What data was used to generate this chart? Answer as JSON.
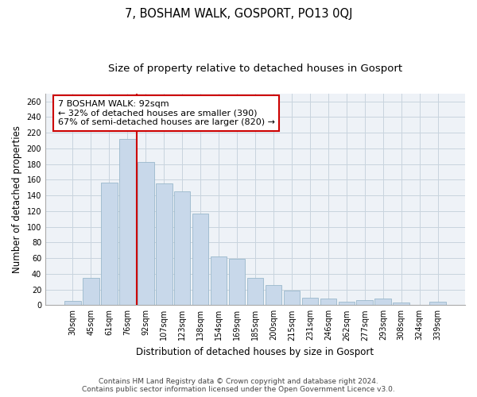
{
  "title": "7, BOSHAM WALK, GOSPORT, PO13 0QJ",
  "subtitle": "Size of property relative to detached houses in Gosport",
  "xlabel": "Distribution of detached houses by size in Gosport",
  "ylabel": "Number of detached properties",
  "bar_labels": [
    "30sqm",
    "45sqm",
    "61sqm",
    "76sqm",
    "92sqm",
    "107sqm",
    "123sqm",
    "138sqm",
    "154sqm",
    "169sqm",
    "185sqm",
    "200sqm",
    "215sqm",
    "231sqm",
    "246sqm",
    "262sqm",
    "277sqm",
    "293sqm",
    "308sqm",
    "324sqm",
    "339sqm"
  ],
  "bar_values": [
    5,
    35,
    156,
    212,
    183,
    155,
    145,
    117,
    62,
    59,
    35,
    26,
    19,
    9,
    8,
    4,
    6,
    8,
    3,
    0,
    4
  ],
  "bar_color": "#c8d8ea",
  "bar_edge_color": "#9ab8cc",
  "vline_color": "#cc0000",
  "annotation_line1": "7 BOSHAM WALK: 92sqm",
  "annotation_line2": "← 32% of detached houses are smaller (390)",
  "annotation_line3": "67% of semi-detached houses are larger (820) →",
  "annotation_box_color": "#ffffff",
  "annotation_box_edge": "#cc0000",
  "ylim": [
    0,
    270
  ],
  "yticks": [
    0,
    20,
    40,
    60,
    80,
    100,
    120,
    140,
    160,
    180,
    200,
    220,
    240,
    260
  ],
  "footer_line1": "Contains HM Land Registry data © Crown copyright and database right 2024.",
  "footer_line2": "Contains public sector information licensed under the Open Government Licence v3.0.",
  "plot_bg_color": "#eef2f7",
  "grid_color": "#c8d4de",
  "title_fontsize": 10.5,
  "subtitle_fontsize": 9.5,
  "axis_label_fontsize": 8.5,
  "tick_fontsize": 7,
  "footer_fontsize": 6.5,
  "annotation_fontsize": 8
}
